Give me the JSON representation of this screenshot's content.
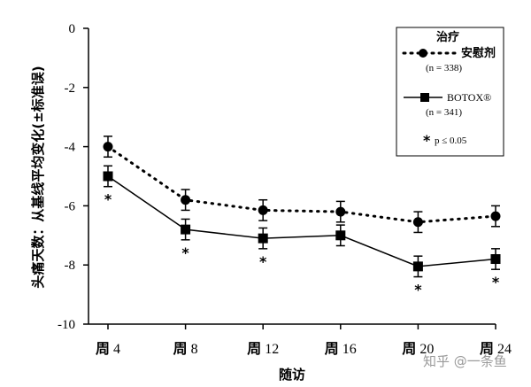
{
  "chart_data": {
    "type": "line",
    "ylabel": "头痛天数：从基线平均变化(±标准误)",
    "xlabel": "随访",
    "ylim": [
      -10,
      0
    ],
    "yticks": [
      0,
      -2,
      -4,
      -6,
      -8,
      -10
    ],
    "ytick_labels": [
      "0",
      "-2",
      "-4",
      "-6",
      "-8",
      "-10"
    ],
    "categories": [
      "周 4",
      "周 8",
      "周 12",
      "周 16",
      "周 20",
      "周 24"
    ],
    "category_parts": [
      {
        "zh": "周",
        "num": " 4"
      },
      {
        "zh": "周",
        "num": " 8"
      },
      {
        "zh": "周",
        "num": " 12"
      },
      {
        "zh": "周",
        "num": " 16"
      },
      {
        "zh": "周",
        "num": " 20"
      },
      {
        "zh": "周",
        "num": " 24"
      }
    ],
    "series": [
      {
        "name": "安慰剂",
        "n_label": "(n = 338)",
        "style": "dotted",
        "marker": "circle",
        "values": [
          -4.0,
          -5.8,
          -6.15,
          -6.2,
          -6.55,
          -6.35
        ],
        "err": [
          0.35,
          0.35,
          0.35,
          0.35,
          0.35,
          0.35
        ]
      },
      {
        "name": "BOTOX®",
        "n_label": "(n = 341)",
        "style": "solid",
        "marker": "square",
        "values": [
          -5.0,
          -6.8,
          -7.1,
          -7.0,
          -8.05,
          -7.8
        ],
        "err": [
          0.35,
          0.35,
          0.35,
          0.35,
          0.35,
          0.35
        ]
      }
    ],
    "significant": [
      true,
      true,
      true,
      false,
      true,
      true
    ],
    "legend": {
      "title": "治疗",
      "placement": "top-right",
      "significance_note": "p ≤ 0.05",
      "significance_symbol": "*"
    },
    "grid": false
  },
  "watermark": "知乎 @一条鱼",
  "colors": {
    "line": "#000000",
    "watermark": "#9a9a9a"
  }
}
